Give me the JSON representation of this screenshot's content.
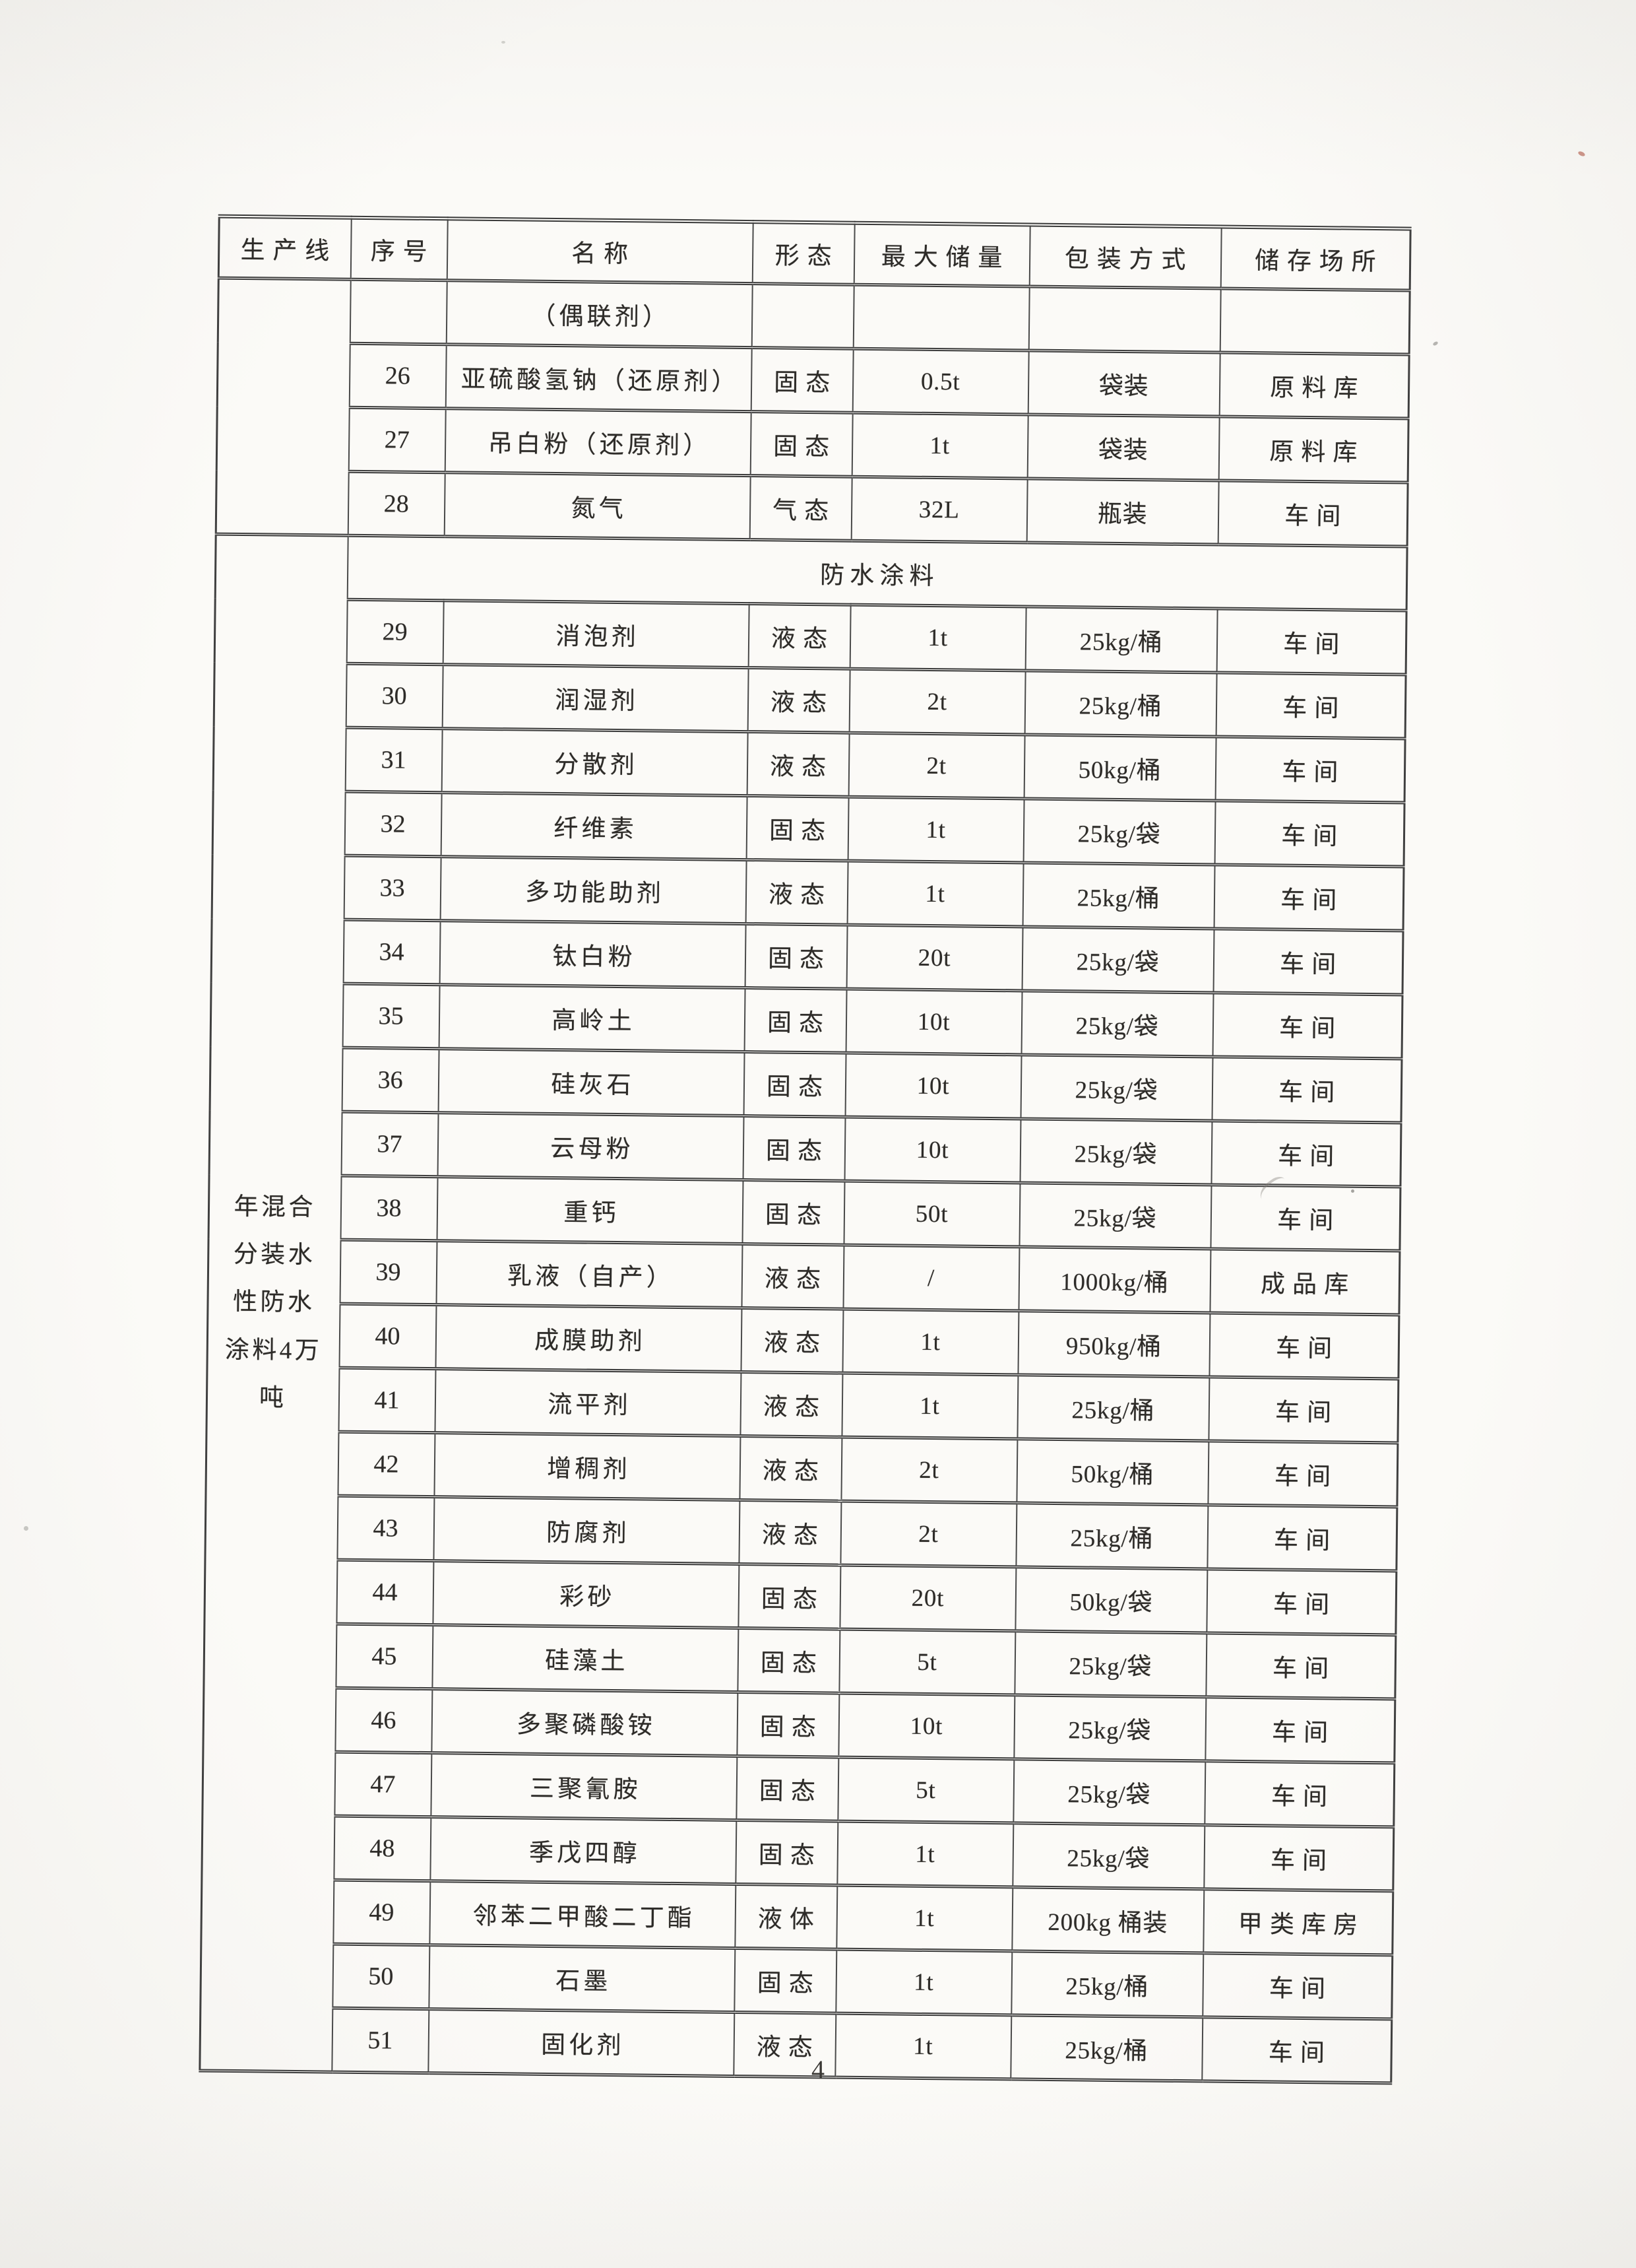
{
  "page": {
    "number": "4"
  },
  "colors": {
    "paper": "#fbfaf7",
    "ink": "#2d2b28",
    "table_line": "#3c3c3c"
  },
  "table": {
    "headers": [
      "生产线",
      "序号",
      "名称",
      "形态",
      "最大储量",
      "包装方式",
      "储存场所"
    ],
    "production_lines": [
      {
        "label": "",
        "section_title": "",
        "rows": [
          {
            "no": "",
            "name": "（偶联剂）",
            "form": "",
            "max_storage": "",
            "packaging": "",
            "location": ""
          },
          {
            "no": "26",
            "name": "亚硫酸氢钠（还原剂）",
            "form": "固态",
            "max_storage": "0.5t",
            "packaging": "袋装",
            "location": "原料库"
          },
          {
            "no": "27",
            "name": "吊白粉（还原剂）",
            "form": "固态",
            "max_storage": "1t",
            "packaging": "袋装",
            "location": "原料库"
          },
          {
            "no": "28",
            "name": "氮气",
            "form": "气态",
            "max_storage": "32L",
            "packaging": "瓶装",
            "location": "车间"
          }
        ]
      },
      {
        "label": "年混合分装水性防水涂料4万吨",
        "section_title": "防水涂料",
        "rows": [
          {
            "no": "29",
            "name": "消泡剂",
            "form": "液态",
            "max_storage": "1t",
            "packaging": "25kg/桶",
            "location": "车间"
          },
          {
            "no": "30",
            "name": "润湿剂",
            "form": "液态",
            "max_storage": "2t",
            "packaging": "25kg/桶",
            "location": "车间"
          },
          {
            "no": "31",
            "name": "分散剂",
            "form": "液态",
            "max_storage": "2t",
            "packaging": "50kg/桶",
            "location": "车间"
          },
          {
            "no": "32",
            "name": "纤维素",
            "form": "固态",
            "max_storage": "1t",
            "packaging": "25kg/袋",
            "location": "车间"
          },
          {
            "no": "33",
            "name": "多功能助剂",
            "form": "液态",
            "max_storage": "1t",
            "packaging": "25kg/桶",
            "location": "车间"
          },
          {
            "no": "34",
            "name": "钛白粉",
            "form": "固态",
            "max_storage": "20t",
            "packaging": "25kg/袋",
            "location": "车间"
          },
          {
            "no": "35",
            "name": "高岭土",
            "form": "固态",
            "max_storage": "10t",
            "packaging": "25kg/袋",
            "location": "车间"
          },
          {
            "no": "36",
            "name": "硅灰石",
            "form": "固态",
            "max_storage": "10t",
            "packaging": "25kg/袋",
            "location": "车间"
          },
          {
            "no": "37",
            "name": "云母粉",
            "form": "固态",
            "max_storage": "10t",
            "packaging": "25kg/袋",
            "location": "车间"
          },
          {
            "no": "38",
            "name": "重钙",
            "form": "固态",
            "max_storage": "50t",
            "packaging": "25kg/袋",
            "location": "车间"
          },
          {
            "no": "39",
            "name": "乳液（自产）",
            "form": "液态",
            "max_storage": "/",
            "packaging": "1000kg/桶",
            "location": "成品库"
          },
          {
            "no": "40",
            "name": "成膜助剂",
            "form": "液态",
            "max_storage": "1t",
            "packaging": "950kg/桶",
            "location": "车间"
          },
          {
            "no": "41",
            "name": "流平剂",
            "form": "液态",
            "max_storage": "1t",
            "packaging": "25kg/桶",
            "location": "车间"
          },
          {
            "no": "42",
            "name": "增稠剂",
            "form": "液态",
            "max_storage": "2t",
            "packaging": "50kg/桶",
            "location": "车间"
          },
          {
            "no": "43",
            "name": "防腐剂",
            "form": "液态",
            "max_storage": "2t",
            "packaging": "25kg/桶",
            "location": "车间"
          },
          {
            "no": "44",
            "name": "彩砂",
            "form": "固态",
            "max_storage": "20t",
            "packaging": "50kg/袋",
            "location": "车间"
          },
          {
            "no": "45",
            "name": "硅藻土",
            "form": "固态",
            "max_storage": "5t",
            "packaging": "25kg/袋",
            "location": "车间"
          },
          {
            "no": "46",
            "name": "多聚磷酸铵",
            "form": "固态",
            "max_storage": "10t",
            "packaging": "25kg/袋",
            "location": "车间"
          },
          {
            "no": "47",
            "name": "三聚氰胺",
            "form": "固态",
            "max_storage": "5t",
            "packaging": "25kg/袋",
            "location": "车间"
          },
          {
            "no": "48",
            "name": "季戊四醇",
            "form": "固态",
            "max_storage": "1t",
            "packaging": "25kg/袋",
            "location": "车间"
          },
          {
            "no": "49",
            "name": "邻苯二甲酸二丁酯",
            "form": "液体",
            "max_storage": "1t",
            "packaging": "200kg 桶装",
            "location": "甲类库房"
          },
          {
            "no": "50",
            "name": "石墨",
            "form": "固态",
            "max_storage": "1t",
            "packaging": "25kg/桶",
            "location": "车间"
          },
          {
            "no": "51",
            "name": "固化剂",
            "form": "液态",
            "max_storage": "1t",
            "packaging": "25kg/桶",
            "location": "车间"
          }
        ]
      }
    ]
  }
}
